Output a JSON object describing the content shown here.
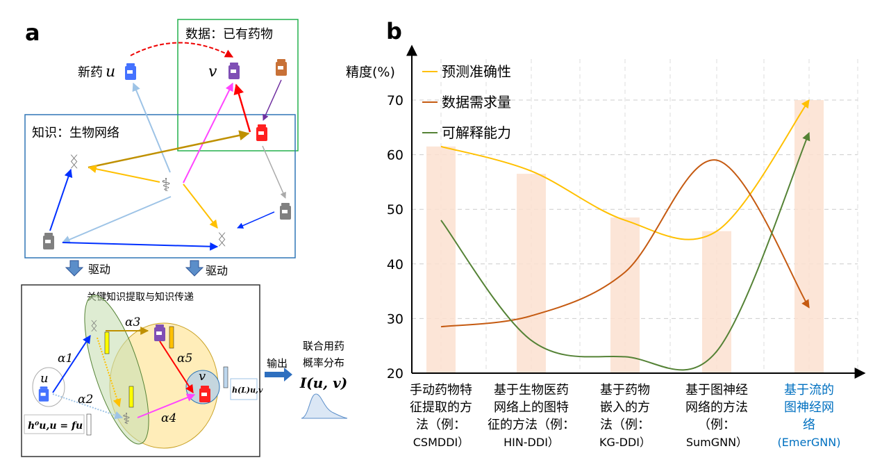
{
  "panel_a": {
    "label": "a",
    "data_box_title": "数据：已有药物",
    "knowledge_box_title": "知识：生物网络",
    "new_drug_label": "新药",
    "u": "u",
    "v": "v",
    "drive_label_1": "驱动",
    "drive_label_2": "驱动",
    "process_title": "关键知识提取与知识传递",
    "alpha1": "α1",
    "alpha2": "α2",
    "alpha3": "α3",
    "alpha4": "α4",
    "alpha5": "α5",
    "h0_formula": "h⁰u,u = fu",
    "hL_formula": "h(L)u,v",
    "output_label": "输出",
    "result_line1": "联合用药",
    "result_line2": "概率分布",
    "result_formula": "I(u, v)",
    "colors": {
      "data_box": "#22b14c",
      "knowledge_box": "#2e75b6",
      "new_drug": "#4472ff",
      "known_drug": "#7f4fb5",
      "red_drug": "#ff2020"
    }
  },
  "panel_b": {
    "label": "b"
  },
  "chart_data": {
    "type": "bar+line",
    "ylabel": "精度(%)",
    "ylim": [
      20,
      70
    ],
    "yticks": [
      20,
      30,
      40,
      50,
      60,
      70
    ],
    "grid": true,
    "legend_position": "top-left",
    "categories": [
      {
        "lines": [
          "手动药物特",
          "征提取的方",
          "法（例：",
          "CSMDDI）"
        ],
        "highlight": false
      },
      {
        "lines": [
          "基于生物医药",
          "网络上的图特",
          "征的方法（例：",
          "HIN-DDI）"
        ],
        "highlight": false
      },
      {
        "lines": [
          "基于药物",
          "嵌入的方",
          "法（例：",
          "KG-DDI）"
        ],
        "highlight": false
      },
      {
        "lines": [
          "基于图神经",
          "网络的方法",
          "（例：",
          "SumGNN）"
        ],
        "highlight": false
      },
      {
        "lines": [
          "基于流的",
          "图神经网",
          "络",
          "(EmerGNN)"
        ],
        "highlight": true
      }
    ],
    "bars": [
      61.5,
      56.5,
      48.5,
      46,
      70
    ],
    "series": [
      {
        "name": "预测准确性",
        "color": "#ffc000",
        "values": [
          61.5,
          57,
          48,
          46,
          70
        ]
      },
      {
        "name": "数据需求量",
        "color": "#c55a11",
        "values": [
          28.5,
          30.5,
          38.5,
          59,
          32
        ]
      },
      {
        "name": "可解释能力",
        "color": "#548235",
        "values": [
          48,
          26,
          23,
          24,
          64
        ]
      }
    ],
    "colors": {
      "bar": "#fbe0d0",
      "highlight_text": "#0070c0"
    }
  }
}
